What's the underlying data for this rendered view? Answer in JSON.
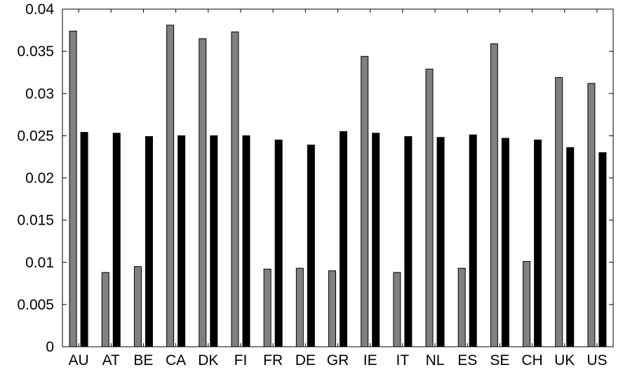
{
  "chart_data": {
    "type": "bar",
    "title": "",
    "xlabel": "",
    "ylabel": "",
    "ylim": [
      0,
      0.04
    ],
    "yticks": [
      "0",
      "0.005",
      "0.01",
      "0.015",
      "0.02",
      "0.025",
      "0.03",
      "0.035",
      "0.04"
    ],
    "ytick_values": [
      0,
      0.005,
      0.01,
      0.015,
      0.02,
      0.025,
      0.03,
      0.035,
      0.04
    ],
    "categories": [
      "AU",
      "AT",
      "BE",
      "CA",
      "DK",
      "FI",
      "FR",
      "DE",
      "GR",
      "IE",
      "IT",
      "NL",
      "ES",
      "SE",
      "CH",
      "UK",
      "US"
    ],
    "grid": false,
    "legend": "none",
    "series": [
      {
        "color": "#808080",
        "values": [
          0.0374,
          0.0088,
          0.0095,
          0.0381,
          0.0365,
          0.0373,
          0.0092,
          0.0093,
          0.009,
          0.0344,
          0.0088,
          0.0329,
          0.0093,
          0.0359,
          0.0101,
          0.0319,
          0.0312
        ]
      },
      {
        "color": "#000000",
        "values": [
          0.0254,
          0.0253,
          0.0249,
          0.025,
          0.025,
          0.025,
          0.0245,
          0.0239,
          0.0255,
          0.0253,
          0.0249,
          0.0248,
          0.0251,
          0.0247,
          0.0245,
          0.0236,
          0.023
        ]
      }
    ]
  }
}
